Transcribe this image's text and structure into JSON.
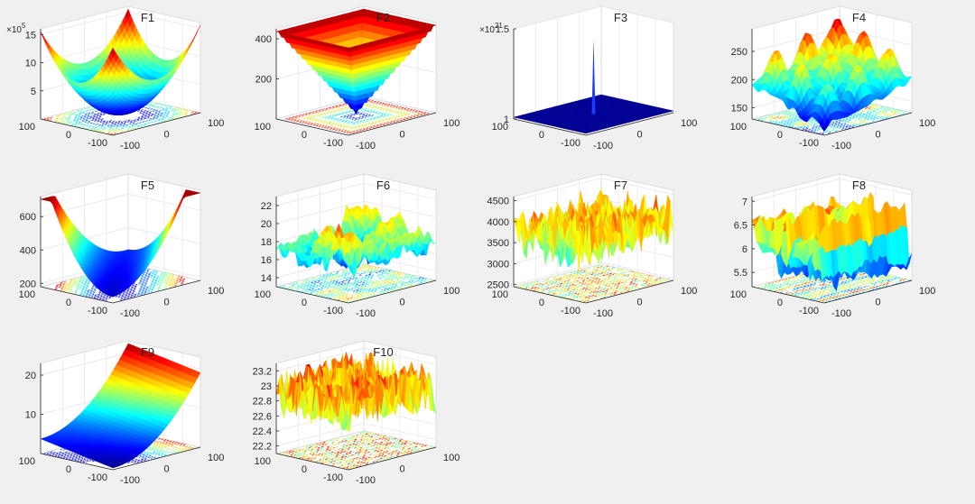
{
  "figure": {
    "background": "#f0f0f0",
    "colormap": "jet",
    "layout": "3 rows x 4 columns"
  },
  "chart_data": [
    {
      "type": "surface",
      "title": "F1",
      "exponent_label": "×10",
      "exponent": "5",
      "zticks": [
        "5",
        "10",
        "15"
      ],
      "zlim": [
        0,
        16
      ],
      "xticks": [
        "-100",
        "0",
        "100"
      ],
      "yticks": [
        "-100",
        "0",
        "100"
      ],
      "shape": "bowl",
      "surface_visible": true,
      "contour_visible": true
    },
    {
      "type": "surface",
      "title": "F2",
      "exponent_label": "",
      "exponent": "",
      "zticks": [
        "200",
        "400"
      ],
      "zlim": [
        0,
        450
      ],
      "xticks": [
        "-100",
        "0",
        "100"
      ],
      "yticks": [
        "-100",
        "0",
        "100"
      ],
      "shape": "pyramid",
      "surface_visible": true,
      "contour_visible": true
    },
    {
      "type": "surface",
      "title": "F3",
      "exponent_label": "×10",
      "exponent": "21",
      "zticks": [
        "1",
        "1.5"
      ],
      "zlim": [
        1,
        1.5
      ],
      "xticks": [
        "-100",
        "0",
        "100"
      ],
      "yticks": [
        "-100",
        "0",
        "100"
      ],
      "shape": "spike",
      "surface_visible": true,
      "contour_visible": false
    },
    {
      "type": "surface",
      "title": "F4",
      "exponent_label": "",
      "exponent": "",
      "zticks": [
        "150",
        "200",
        "250"
      ],
      "zlim": [
        130,
        290
      ],
      "xticks": [
        "-100",
        "0",
        "100"
      ],
      "yticks": [
        "-100",
        "0",
        "100"
      ],
      "shape": "rastrigin",
      "surface_visible": true,
      "contour_visible": true
    },
    {
      "type": "surface",
      "title": "F5",
      "exponent_label": "",
      "exponent": "",
      "zticks": [
        "200",
        "400",
        "600"
      ],
      "zlim": [
        180,
        720
      ],
      "xticks": [
        "-100",
        "0",
        "100"
      ],
      "yticks": [
        "-100",
        "0",
        "100"
      ],
      "shape": "trough",
      "surface_visible": true,
      "contour_visible": true
    },
    {
      "type": "surface",
      "title": "F6",
      "exponent_label": "",
      "exponent": "",
      "zticks": [
        "14",
        "16",
        "18",
        "20",
        "22"
      ],
      "zlim": [
        13,
        23
      ],
      "xticks": [
        "-100",
        "0",
        "100"
      ],
      "yticks": [
        "-100",
        "0",
        "100"
      ],
      "shape": "rough",
      "surface_visible": true,
      "contour_visible": true
    },
    {
      "type": "surface",
      "title": "F7",
      "exponent_label": "",
      "exponent": "",
      "zticks": [
        "2500",
        "3000",
        "3500",
        "4000",
        "4500"
      ],
      "zlim": [
        2450,
        4600
      ],
      "xticks": [
        "-100",
        "0",
        "100"
      ],
      "yticks": [
        "-100",
        "0",
        "100"
      ],
      "shape": "noise",
      "surface_visible": true,
      "contour_visible": true
    },
    {
      "type": "surface",
      "title": "F8",
      "exponent_label": "",
      "exponent": "",
      "zticks": [
        "5.5",
        "6",
        "6.5",
        "7"
      ],
      "zlim": [
        5.2,
        7.1
      ],
      "xticks": [
        "-100",
        "0",
        "100"
      ],
      "yticks": [
        "-100",
        "0",
        "100"
      ],
      "shape": "ridges",
      "surface_visible": true,
      "contour_visible": true
    },
    {
      "type": "surface",
      "title": "F9",
      "exponent_label": "",
      "exponent": "",
      "zticks": [
        "10",
        "20"
      ],
      "zlim": [
        0,
        23
      ],
      "xticks": [
        "-100",
        "0",
        "100"
      ],
      "yticks": [
        "-100",
        "0",
        "100"
      ],
      "shape": "ramp",
      "surface_visible": true,
      "contour_visible": true
    },
    {
      "type": "surface",
      "title": "F10",
      "exponent_label": "",
      "exponent": "",
      "zticks": [
        "22.2",
        "22.4",
        "22.6",
        "22.8",
        "23",
        "23.2"
      ],
      "zlim": [
        22.1,
        23.3
      ],
      "xticks": [
        "-100",
        "0",
        "100"
      ],
      "yticks": [
        "-100",
        "0",
        "100"
      ],
      "shape": "dense",
      "surface_visible": true,
      "contour_visible": true
    }
  ]
}
